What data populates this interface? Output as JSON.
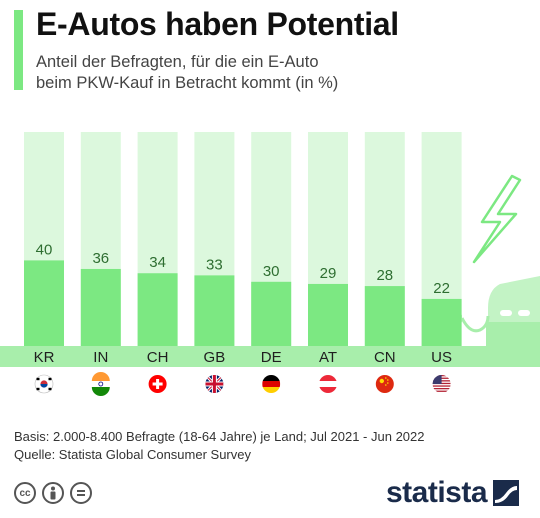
{
  "header": {
    "title": "E-Autos haben Potential",
    "subtitle_line1": "Anteil der Befragten, für die ein E-Auto",
    "subtitle_line2": "beim PKW-Kauf in Betracht kommt (in %)"
  },
  "chart_data": {
    "type": "bar",
    "categories": [
      "KR",
      "IN",
      "CH",
      "GB",
      "DE",
      "AT",
      "CN",
      "US"
    ],
    "values": [
      40,
      36,
      34,
      33,
      30,
      29,
      28,
      22
    ],
    "ylim": [
      0,
      100
    ],
    "flag_icons": [
      "flag-south-korea-icon",
      "flag-india-icon",
      "flag-switzerland-icon",
      "flag-uk-icon",
      "flag-germany-icon",
      "flag-austria-icon",
      "flag-china-icon",
      "flag-usa-icon"
    ],
    "colors": {
      "bar": "#7ce882",
      "bar_background": "#dcf8dd",
      "label": "#2e6e31",
      "band": "#a8eeab"
    }
  },
  "footer": {
    "basis": "Basis: 2.000-8.400 Befragte (18-64 Jahre) je Land; Jul 2021 - Jun 2022",
    "source": "Quelle: Statista Global Consumer Survey",
    "brand": "statista",
    "license_icons": [
      "cc-icon",
      "by-icon",
      "nd-icon"
    ]
  }
}
